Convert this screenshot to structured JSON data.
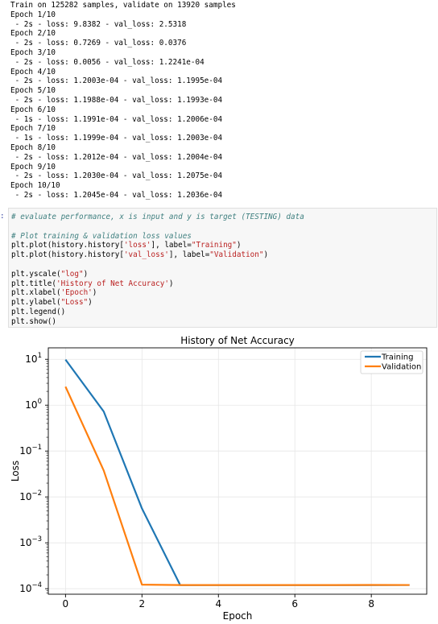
{
  "training_log": {
    "header": "Train on 125282 samples, validate on 13920 samples",
    "epochs": [
      {
        "epoch": "Epoch 1/10",
        "metrics": " - 2s - loss: 9.8382 - val_loss: 2.5318"
      },
      {
        "epoch": "Epoch 2/10",
        "metrics": " - 2s - loss: 0.7269 - val_loss: 0.0376"
      },
      {
        "epoch": "Epoch 3/10",
        "metrics": " - 2s - loss: 0.0056 - val_loss: 1.2241e-04"
      },
      {
        "epoch": "Epoch 4/10",
        "metrics": " - 2s - loss: 1.2003e-04 - val_loss: 1.1995e-04"
      },
      {
        "epoch": "Epoch 5/10",
        "metrics": " - 2s - loss: 1.1988e-04 - val_loss: 1.1993e-04"
      },
      {
        "epoch": "Epoch 6/10",
        "metrics": " - 1s - loss: 1.1991e-04 - val_loss: 1.2006e-04"
      },
      {
        "epoch": "Epoch 7/10",
        "metrics": " - 1s - loss: 1.1999e-04 - val_loss: 1.2003e-04"
      },
      {
        "epoch": "Epoch 8/10",
        "metrics": " - 2s - loss: 1.2012e-04 - val_loss: 1.2004e-04"
      },
      {
        "epoch": "Epoch 9/10",
        "metrics": " - 2s - loss: 1.2030e-04 - val_loss: 1.2075e-04"
      },
      {
        "epoch": "Epoch 10/10",
        "metrics": " - 2s - loss: 1.2045e-04 - val_loss: 1.2036e-04"
      }
    ]
  },
  "code_cell": {
    "prompt": ":",
    "lines": [
      [
        {
          "t": "# evaluate performance, x is input and y is target (TESTING) data",
          "c": "c-comment"
        }
      ],
      [],
      [
        {
          "t": "# Plot training & validation loss values",
          "c": "c-comment"
        }
      ],
      [
        {
          "t": "plt.plot(history.history[",
          "c": "c-name"
        },
        {
          "t": "'loss'",
          "c": "c-str"
        },
        {
          "t": "], label=",
          "c": "c-name"
        },
        {
          "t": "\"Training\"",
          "c": "c-str"
        },
        {
          "t": ")",
          "c": "c-name"
        }
      ],
      [
        {
          "t": "plt.plot(history.history[",
          "c": "c-name"
        },
        {
          "t": "'val_loss'",
          "c": "c-str"
        },
        {
          "t": "], label=",
          "c": "c-name"
        },
        {
          "t": "\"Validation\"",
          "c": "c-str"
        },
        {
          "t": ")",
          "c": "c-name"
        }
      ],
      [],
      [
        {
          "t": "plt.yscale(",
          "c": "c-name"
        },
        {
          "t": "\"log\"",
          "c": "c-str"
        },
        {
          "t": ")",
          "c": "c-name"
        }
      ],
      [
        {
          "t": "plt.title(",
          "c": "c-name"
        },
        {
          "t": "'History of Net Accuracy'",
          "c": "c-str"
        },
        {
          "t": ")",
          "c": "c-name"
        }
      ],
      [
        {
          "t": "plt.xlabel(",
          "c": "c-name"
        },
        {
          "t": "'Epoch'",
          "c": "c-str"
        },
        {
          "t": ")",
          "c": "c-name"
        }
      ],
      [
        {
          "t": "plt.ylabel(",
          "c": "c-name"
        },
        {
          "t": "\"Loss\"",
          "c": "c-str"
        },
        {
          "t": ")",
          "c": "c-name"
        }
      ],
      [
        {
          "t": "plt.legend()",
          "c": "c-name"
        }
      ],
      [
        {
          "t": "plt.show()",
          "c": "c-name"
        }
      ]
    ]
  },
  "chart_data": {
    "type": "line",
    "title": "History of Net Accuracy",
    "xlabel": "Epoch",
    "ylabel": "Loss",
    "yscale": "log",
    "xlim": [
      -0.45,
      9.45
    ],
    "ylim_log10": [
      -4.12,
      1.25
    ],
    "xticks": [
      0,
      2,
      4,
      6,
      8
    ],
    "yticks_exp": [
      1,
      0,
      -1,
      -2,
      -3,
      -4
    ],
    "ytick_base": "10",
    "grid": true,
    "legend_position": "top-right",
    "series": [
      {
        "name": "Training",
        "color": "#1f77b4",
        "x": [
          0,
          1,
          2,
          3,
          4,
          5,
          6,
          7,
          8,
          9
        ],
        "values": [
          9.8382,
          0.7269,
          0.0056,
          0.00012003,
          0.00011988,
          0.00011991,
          0.00011999,
          0.00012012,
          0.0001203,
          0.00012045
        ]
      },
      {
        "name": "Validation",
        "color": "#ff7f0e",
        "x": [
          0,
          1,
          2,
          3,
          4,
          5,
          6,
          7,
          8,
          9
        ],
        "values": [
          2.5318,
          0.0376,
          0.00012241,
          0.00011995,
          0.00011993,
          0.00012006,
          0.00012003,
          0.00012004,
          0.00012075,
          0.00012036
        ]
      }
    ]
  }
}
